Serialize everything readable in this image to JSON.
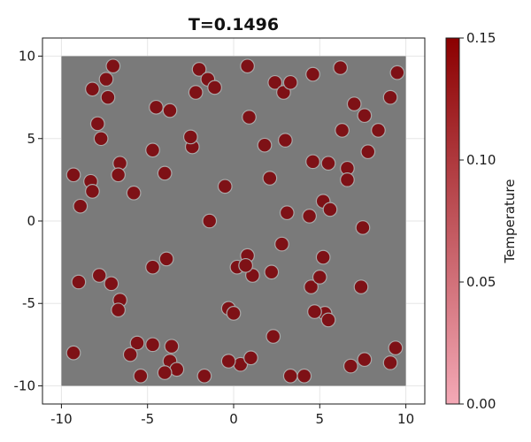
{
  "chart_data": {
    "type": "scatter",
    "title": "T=0.1496",
    "xlabel": "",
    "ylabel": "",
    "xlim": [
      -11.1,
      11.1
    ],
    "ylim": [
      -11.1,
      11.1
    ],
    "x_ticks": [
      -10,
      -5,
      0,
      5,
      10
    ],
    "y_ticks": [
      -10,
      -5,
      0,
      5,
      10
    ],
    "x_tick_labels": [
      "-10",
      "-5",
      "0",
      "5",
      "10"
    ],
    "y_tick_labels": [
      "-10",
      "-5",
      "0",
      "5",
      "10"
    ],
    "grid": true,
    "box": {
      "x": [
        -10,
        10
      ],
      "y": [
        -10,
        10
      ],
      "color": "#7a7a7a"
    },
    "particle_radius": 0.4,
    "colorbar": {
      "label": "Temperature",
      "range": [
        0.0,
        0.15
      ],
      "ticks": [
        0.0,
        0.05,
        0.1,
        0.15
      ],
      "tick_labels": [
        "0.00",
        "0.05",
        "0.10",
        "0.15"
      ],
      "color_low": "#f4a9b6",
      "color_high": "#8b0000"
    },
    "particle_color": "#7e1116",
    "series": [
      {
        "x": [
          -7.0,
          -7.4,
          -8.2,
          -7.3,
          -4.5,
          -3.7,
          -2.0,
          -1.5,
          -1.1,
          -2.2,
          0.8,
          2.4,
          2.9,
          3.3,
          4.6,
          6.2,
          7.0,
          9.5,
          9.1,
          7.6,
          8.4,
          6.3,
          -7.9,
          -7.7,
          -6.6,
          -6.7,
          -4.7,
          -5.8,
          -4.0,
          -2.4,
          -2.5,
          -0.5,
          1.8,
          2.1,
          3.0,
          4.6,
          5.5,
          6.6,
          6.6,
          7.8,
          -9.3,
          -8.3,
          -8.2,
          -8.9,
          0.9,
          5.2,
          5.6,
          -1.4,
          3.1,
          4.4,
          7.5,
          2.8,
          0.8,
          0.2,
          1.1,
          2.2,
          5.2,
          -9.0,
          -7.8,
          -7.1,
          -6.6,
          -6.7,
          -3.9,
          -4.7,
          0.7,
          -0.3,
          0.0,
          4.5,
          5.0,
          5.3,
          4.7,
          5.5,
          7.4,
          -9.3,
          -5.6,
          -6.0,
          -4.7,
          -5.4,
          -3.6,
          -3.7,
          -3.3,
          -4.0,
          -1.7,
          0.4,
          1.0,
          -0.3,
          2.3,
          3.3,
          4.1,
          6.8,
          7.6,
          9.4,
          9.1
        ],
        "y": [
          9.4,
          8.6,
          8.0,
          7.5,
          6.9,
          6.7,
          9.2,
          8.6,
          8.1,
          7.8,
          9.4,
          8.4,
          7.8,
          8.4,
          8.9,
          9.3,
          7.1,
          9.0,
          7.5,
          6.4,
          5.5,
          5.5,
          5.9,
          5.0,
          3.5,
          2.8,
          4.3,
          1.7,
          2.9,
          4.5,
          5.1,
          2.1,
          4.6,
          2.6,
          4.9,
          3.6,
          3.5,
          3.2,
          2.5,
          4.2,
          2.8,
          2.4,
          1.8,
          0.9,
          6.3,
          1.2,
          0.7,
          0.0,
          0.5,
          0.3,
          -0.4,
          -1.4,
          -2.1,
          -2.8,
          -3.3,
          -3.1,
          -2.2,
          -3.7,
          -3.3,
          -3.8,
          -4.8,
          -5.4,
          -2.3,
          -2.8,
          -2.7,
          -5.3,
          -5.6,
          -4.0,
          -3.4,
          -5.6,
          -5.5,
          -6.0,
          -4.0,
          -8.0,
          -7.4,
          -8.1,
          -7.5,
          -9.4,
          -7.6,
          -8.5,
          -9.0,
          -9.2,
          -9.4,
          -8.7,
          -8.3,
          -8.5,
          -7.0,
          -9.4,
          -9.4,
          -8.8,
          -8.4,
          -7.7,
          -8.6
        ]
      }
    ]
  }
}
